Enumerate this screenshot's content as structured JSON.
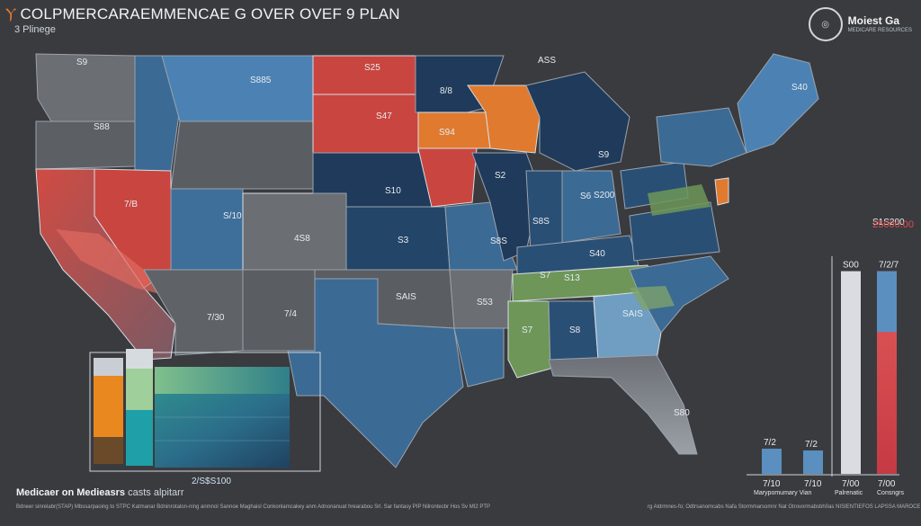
{
  "header": {
    "title": "COLPMERCARAEMMENCAE G OVER OVEF 9 PLAN",
    "subtitle": "3 Plinege"
  },
  "brand": {
    "name": "Moiest Ga",
    "tagline": "MEDICARE RESOURCES",
    "icon": "seal-icon"
  },
  "map": {
    "labels": [
      "S9",
      "S885",
      "S25",
      "ASS",
      "S88",
      "S47",
      "S94",
      "8/8",
      "S2",
      "S9",
      "S40",
      "S200",
      "S8S",
      "S10",
      "S6",
      "7/B",
      "S/10",
      "4S8",
      "S3",
      "S8S",
      "S40",
      "7/30",
      "7/4",
      "SAIS",
      "S53",
      "S13",
      "S8",
      "S7",
      "SAIS",
      "S80",
      "S1S200",
      "S7"
    ],
    "colors": {
      "red": "#c9453f",
      "orange": "#e07a2e",
      "blue_dark": "#1f3a5a",
      "blue_mid": "#3b6a94",
      "blue_light": "#6f9ec2",
      "gray": "#6b6e72",
      "green": "#6d9658"
    }
  },
  "inset": {
    "total": "2/S$S100"
  },
  "bars": {
    "big_value": "25000.00",
    "items": [
      {
        "label": "7/10",
        "value": 7,
        "top_label": "7/2",
        "color": "#5a8fc0"
      },
      {
        "label": "7/10",
        "value": 6.5,
        "top_label": "7/2",
        "color": "#5a8fc0"
      },
      {
        "label": "7/00",
        "value": 0.92,
        "top_label": "S00",
        "color": "#d9dde2"
      },
      {
        "label": "7/00",
        "value": 0.92,
        "top_label": "7/2/7",
        "color": "#d8444a"
      }
    ],
    "captions": [
      "Marypomumary Vian",
      "Palrenatic",
      "Consngrs"
    ]
  },
  "footer": {
    "title_bold": "Medicaer on Medieasrs",
    "title_rest": "casts alpitarr",
    "left_note": "Bdneer sinrelabr(STAP) Mbssarpaoing to STPC Katmanar Bdninrotalon-ning anmnol Sannoe Maghaisl Conkonlamcakey anm Adnonanuat hrearabou Srl. Sar fantasy PIP Nilrontecbr Hos Sv MI2 PTP",
    "right_note": "rg Aldrmnes-fo; Odtrsanomcabs Nafa Stormmarsomnr Nat Gtrovormabsbh0as NISIENTIEFOS LAPSSA MAROCE"
  }
}
